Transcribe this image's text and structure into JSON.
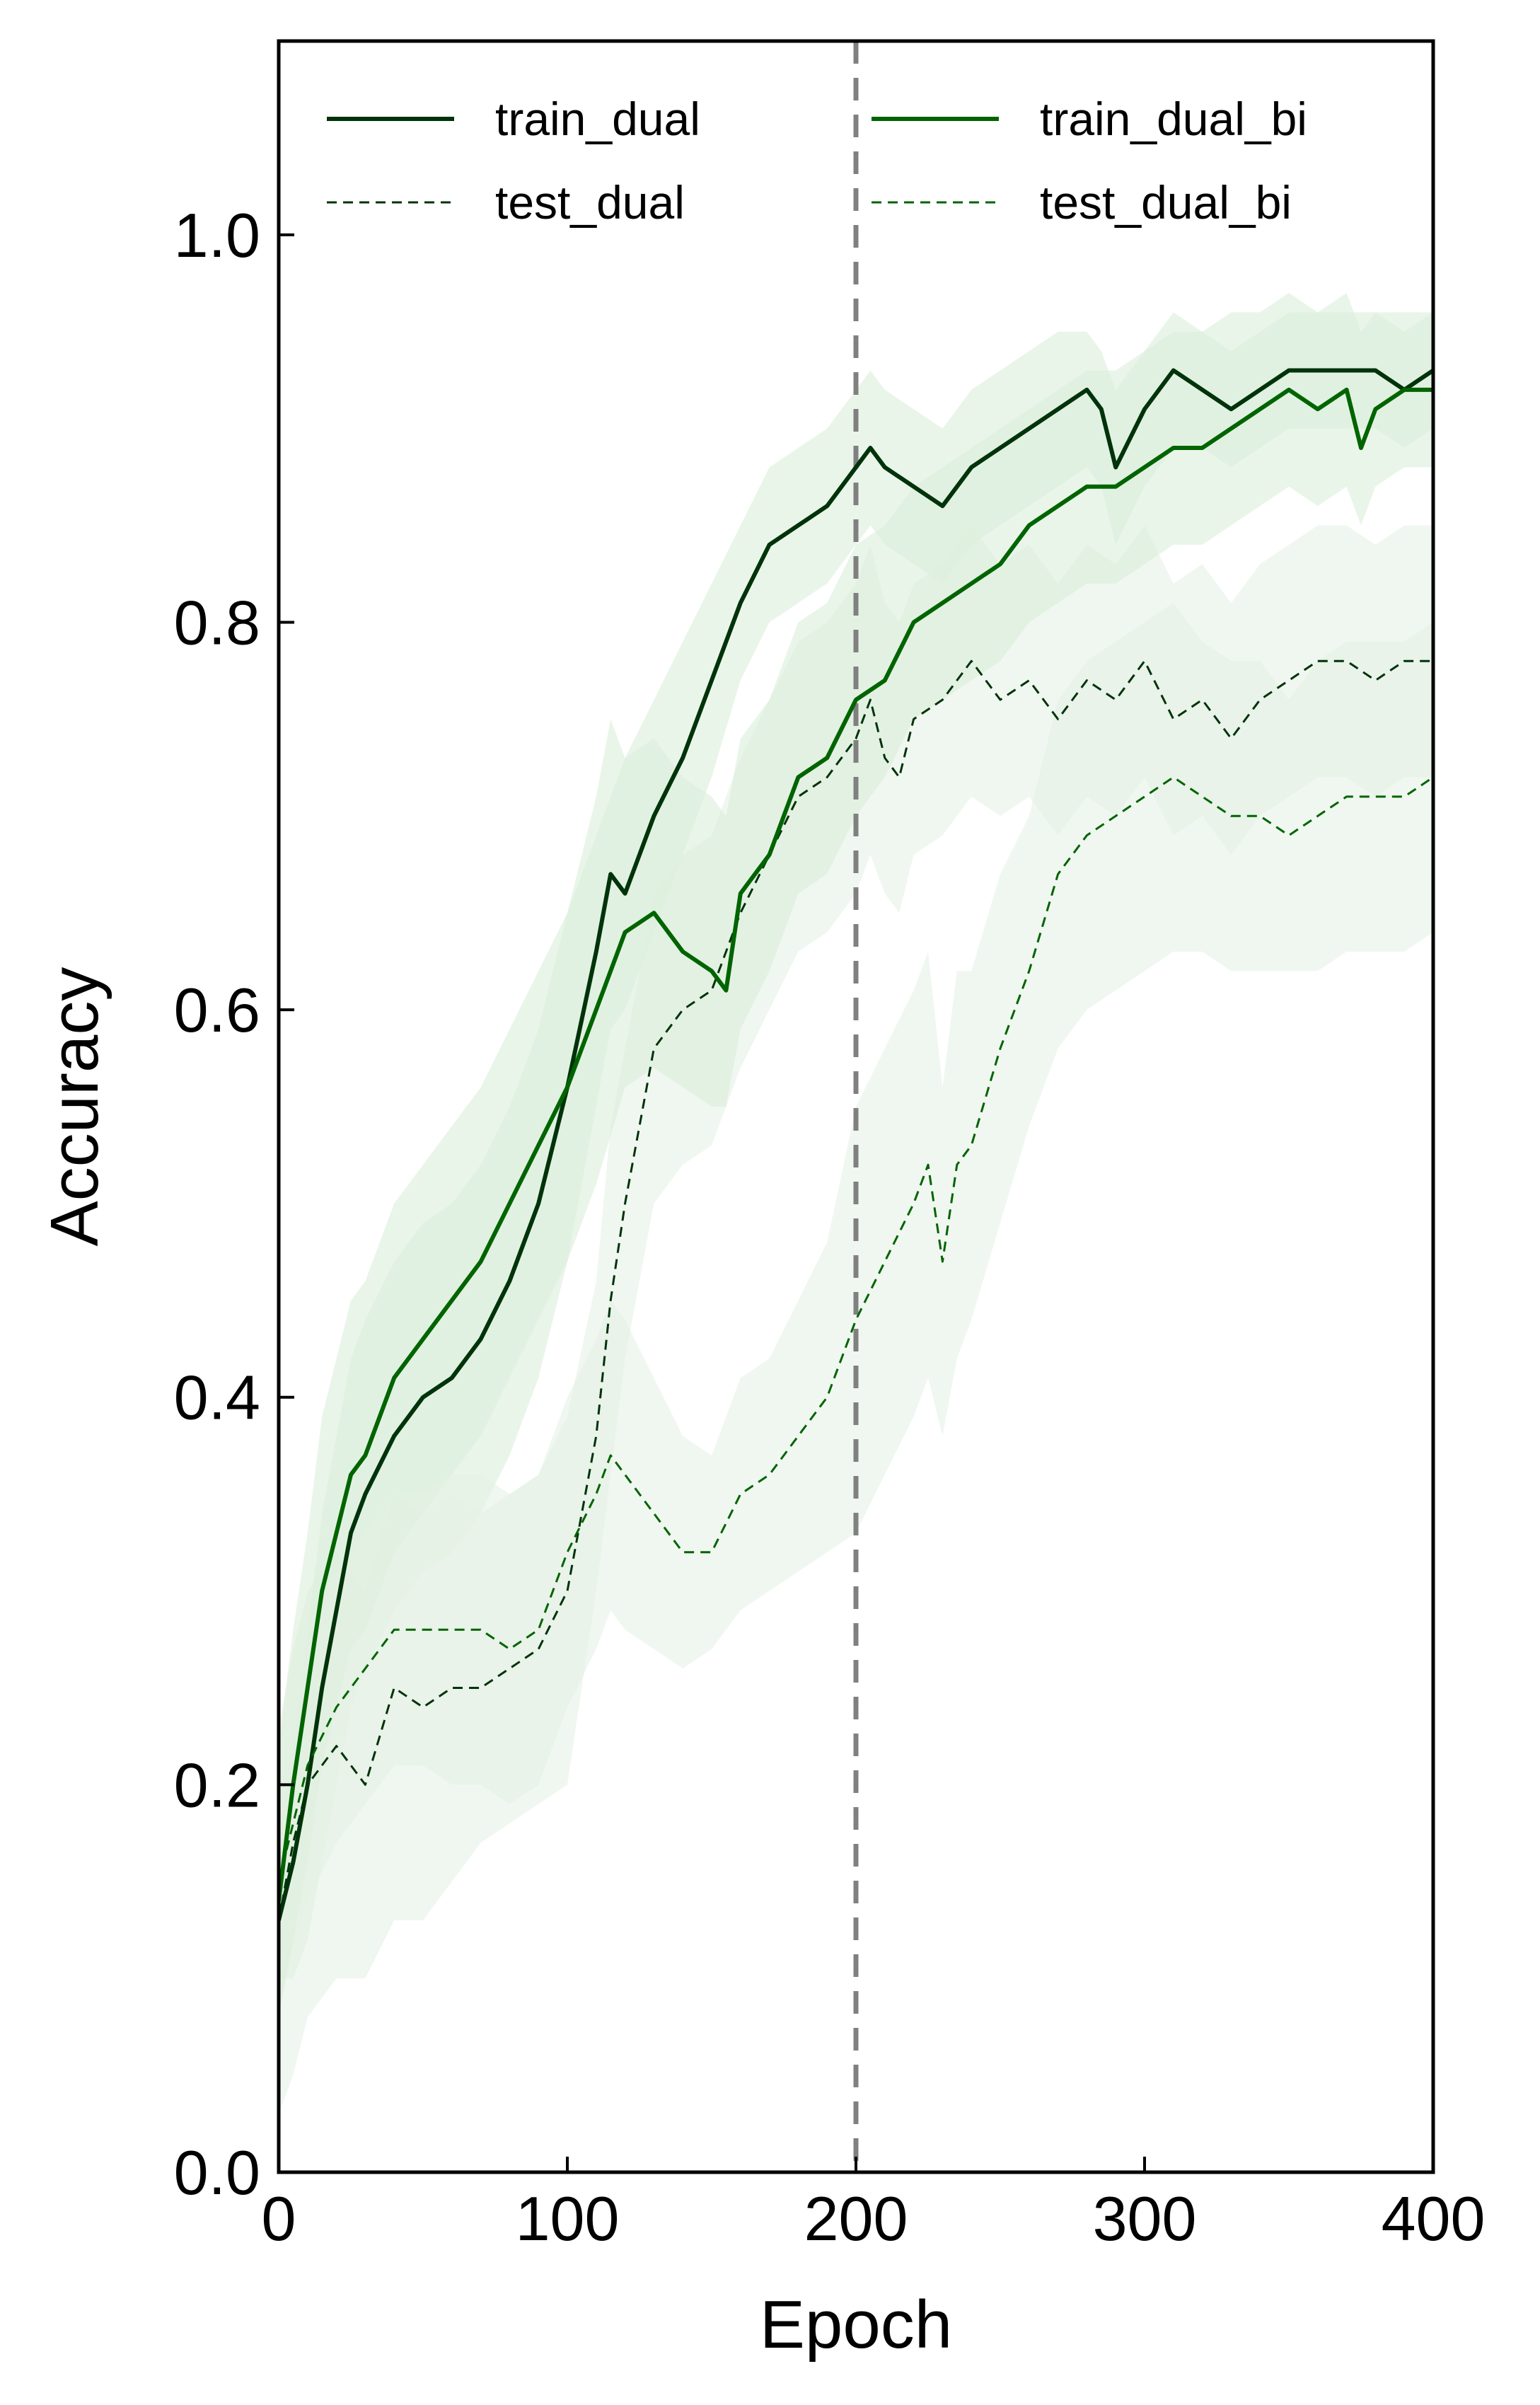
{
  "chart_data": {
    "type": "line",
    "title": "",
    "xlabel": "Epoch",
    "ylabel": "Accuracy",
    "xlim": [
      0,
      400
    ],
    "ylim": [
      0,
      1.1
    ],
    "xticks": [
      0,
      100,
      200,
      300,
      400
    ],
    "xtick_labels": [
      "0",
      "100",
      "200",
      "300",
      "400"
    ],
    "yticks": [
      0.0,
      0.2,
      0.4,
      0.6,
      0.8,
      1.0
    ],
    "ytick_labels": [
      "0.0",
      "0.2",
      "0.4",
      "0.6",
      "0.8",
      "1.0"
    ],
    "grid": false,
    "legend_position": "top",
    "vline": {
      "x": 200,
      "color": "#808080",
      "style": "dashed"
    },
    "series": [
      {
        "name": "train_dual",
        "color": "#00330a",
        "style": "solid",
        "band_color": "#d8ecd8",
        "x": [
          0,
          5,
          10,
          15,
          20,
          25,
          30,
          40,
          50,
          60,
          70,
          80,
          90,
          100,
          110,
          115,
          120,
          130,
          140,
          150,
          160,
          170,
          180,
          190,
          200,
          205,
          210,
          220,
          230,
          240,
          250,
          260,
          270,
          280,
          285,
          290,
          300,
          310,
          320,
          330,
          340,
          350,
          360,
          370,
          380,
          390,
          400
        ],
        "y": [
          0.13,
          0.16,
          0.2,
          0.25,
          0.29,
          0.33,
          0.35,
          0.38,
          0.4,
          0.41,
          0.43,
          0.46,
          0.5,
          0.56,
          0.63,
          0.67,
          0.66,
          0.7,
          0.73,
          0.77,
          0.81,
          0.84,
          0.85,
          0.86,
          0.88,
          0.89,
          0.88,
          0.87,
          0.86,
          0.88,
          0.89,
          0.9,
          0.91,
          0.92,
          0.91,
          0.88,
          0.91,
          0.93,
          0.92,
          0.91,
          0.92,
          0.93,
          0.93,
          0.93,
          0.93,
          0.92,
          0.93
        ],
        "band_low": [
          0.1,
          0.1,
          0.12,
          0.16,
          0.2,
          0.24,
          0.26,
          0.29,
          0.31,
          0.32,
          0.34,
          0.37,
          0.41,
          0.47,
          0.55,
          0.59,
          0.6,
          0.64,
          0.68,
          0.72,
          0.77,
          0.8,
          0.81,
          0.82,
          0.84,
          0.85,
          0.84,
          0.83,
          0.82,
          0.84,
          0.85,
          0.86,
          0.87,
          0.88,
          0.87,
          0.84,
          0.87,
          0.89,
          0.89,
          0.88,
          0.89,
          0.9,
          0.9,
          0.9,
          0.9,
          0.89,
          0.9
        ],
        "band_high": [
          0.17,
          0.22,
          0.28,
          0.34,
          0.38,
          0.42,
          0.44,
          0.47,
          0.49,
          0.5,
          0.52,
          0.55,
          0.59,
          0.65,
          0.71,
          0.75,
          0.73,
          0.76,
          0.79,
          0.82,
          0.85,
          0.88,
          0.89,
          0.9,
          0.92,
          0.93,
          0.92,
          0.91,
          0.9,
          0.92,
          0.93,
          0.94,
          0.95,
          0.95,
          0.94,
          0.92,
          0.94,
          0.96,
          0.95,
          0.94,
          0.95,
          0.96,
          0.96,
          0.96,
          0.96,
          0.95,
          0.96
        ]
      },
      {
        "name": "test_dual",
        "color": "#00330a",
        "style": "dashed",
        "band_color": "#e4f1e4",
        "x": [
          0,
          5,
          10,
          20,
          30,
          40,
          50,
          60,
          70,
          80,
          90,
          100,
          110,
          115,
          120,
          130,
          140,
          150,
          160,
          170,
          180,
          190,
          200,
          205,
          210,
          215,
          220,
          230,
          240,
          250,
          260,
          270,
          280,
          290,
          300,
          310,
          320,
          330,
          340,
          350,
          360,
          370,
          380,
          390,
          400
        ],
        "y": [
          0.13,
          0.17,
          0.2,
          0.22,
          0.2,
          0.25,
          0.24,
          0.25,
          0.25,
          0.26,
          0.27,
          0.3,
          0.38,
          0.45,
          0.5,
          0.58,
          0.6,
          0.61,
          0.65,
          0.68,
          0.71,
          0.72,
          0.74,
          0.76,
          0.73,
          0.72,
          0.75,
          0.76,
          0.78,
          0.76,
          0.77,
          0.75,
          0.77,
          0.76,
          0.78,
          0.75,
          0.76,
          0.74,
          0.76,
          0.77,
          0.78,
          0.78,
          0.77,
          0.78,
          0.78
        ],
        "band_low": [
          0.03,
          0.05,
          0.08,
          0.1,
          0.1,
          0.13,
          0.13,
          0.15,
          0.17,
          0.18,
          0.19,
          0.2,
          0.3,
          0.36,
          0.42,
          0.5,
          0.52,
          0.53,
          0.57,
          0.6,
          0.63,
          0.64,
          0.66,
          0.68,
          0.66,
          0.65,
          0.68,
          0.69,
          0.71,
          0.7,
          0.71,
          0.69,
          0.71,
          0.7,
          0.72,
          0.69,
          0.7,
          0.68,
          0.7,
          0.71,
          0.72,
          0.72,
          0.71,
          0.72,
          0.72
        ],
        "band_high": [
          0.23,
          0.27,
          0.3,
          0.32,
          0.3,
          0.35,
          0.34,
          0.35,
          0.34,
          0.35,
          0.36,
          0.39,
          0.46,
          0.54,
          0.58,
          0.66,
          0.68,
          0.69,
          0.73,
          0.76,
          0.79,
          0.8,
          0.82,
          0.84,
          0.81,
          0.8,
          0.82,
          0.83,
          0.85,
          0.83,
          0.84,
          0.82,
          0.84,
          0.83,
          0.85,
          0.82,
          0.83,
          0.81,
          0.83,
          0.84,
          0.85,
          0.85,
          0.84,
          0.85,
          0.85
        ]
      },
      {
        "name": "train_dual_bi",
        "color": "#006400",
        "style": "solid",
        "band_color": "#d8ecd8",
        "x": [
          0,
          5,
          10,
          15,
          20,
          25,
          30,
          40,
          50,
          60,
          70,
          80,
          90,
          100,
          110,
          120,
          130,
          140,
          150,
          155,
          160,
          170,
          180,
          190,
          200,
          210,
          220,
          230,
          240,
          250,
          260,
          270,
          280,
          290,
          300,
          310,
          320,
          330,
          340,
          350,
          360,
          370,
          375,
          380,
          390,
          400
        ],
        "y": [
          0.14,
          0.2,
          0.25,
          0.3,
          0.33,
          0.36,
          0.37,
          0.41,
          0.43,
          0.45,
          0.47,
          0.5,
          0.53,
          0.56,
          0.6,
          0.64,
          0.65,
          0.63,
          0.62,
          0.61,
          0.66,
          0.68,
          0.72,
          0.73,
          0.76,
          0.77,
          0.8,
          0.81,
          0.82,
          0.83,
          0.85,
          0.86,
          0.87,
          0.87,
          0.88,
          0.89,
          0.89,
          0.9,
          0.91,
          0.92,
          0.91,
          0.92,
          0.89,
          0.91,
          0.92,
          0.92
        ],
        "band_low": [
          0.08,
          0.12,
          0.16,
          0.21,
          0.24,
          0.27,
          0.28,
          0.32,
          0.34,
          0.36,
          0.38,
          0.41,
          0.44,
          0.47,
          0.51,
          0.56,
          0.57,
          0.56,
          0.55,
          0.55,
          0.59,
          0.62,
          0.66,
          0.67,
          0.7,
          0.72,
          0.75,
          0.76,
          0.77,
          0.78,
          0.8,
          0.81,
          0.82,
          0.82,
          0.83,
          0.84,
          0.84,
          0.85,
          0.86,
          0.87,
          0.86,
          0.87,
          0.85,
          0.87,
          0.88,
          0.88
        ],
        "band_high": [
          0.22,
          0.28,
          0.33,
          0.39,
          0.42,
          0.45,
          0.46,
          0.5,
          0.52,
          0.54,
          0.56,
          0.59,
          0.62,
          0.65,
          0.69,
          0.73,
          0.74,
          0.72,
          0.71,
          0.7,
          0.74,
          0.76,
          0.8,
          0.81,
          0.84,
          0.85,
          0.87,
          0.88,
          0.89,
          0.9,
          0.91,
          0.92,
          0.93,
          0.93,
          0.94,
          0.95,
          0.95,
          0.96,
          0.96,
          0.97,
          0.96,
          0.97,
          0.95,
          0.96,
          0.96,
          0.96
        ]
      },
      {
        "name": "test_dual_bi",
        "color": "#006400",
        "style": "dashed",
        "band_color": "#e4f1e4",
        "x": [
          0,
          10,
          20,
          30,
          40,
          50,
          60,
          70,
          80,
          90,
          100,
          110,
          115,
          120,
          130,
          140,
          150,
          160,
          170,
          180,
          190,
          200,
          210,
          220,
          225,
          230,
          235,
          240,
          250,
          260,
          270,
          280,
          290,
          300,
          310,
          320,
          330,
          340,
          350,
          360,
          370,
          380,
          390,
          400
        ],
        "y": [
          0.15,
          0.21,
          0.24,
          0.26,
          0.28,
          0.28,
          0.28,
          0.28,
          0.27,
          0.28,
          0.32,
          0.35,
          0.37,
          0.36,
          0.34,
          0.32,
          0.32,
          0.35,
          0.36,
          0.38,
          0.4,
          0.44,
          0.47,
          0.5,
          0.52,
          0.47,
          0.52,
          0.53,
          0.58,
          0.62,
          0.67,
          0.69,
          0.7,
          0.71,
          0.72,
          0.71,
          0.7,
          0.7,
          0.69,
          0.7,
          0.71,
          0.71,
          0.71,
          0.72
        ],
        "band_low": [
          0.1,
          0.14,
          0.17,
          0.19,
          0.21,
          0.21,
          0.2,
          0.2,
          0.19,
          0.2,
          0.24,
          0.27,
          0.29,
          0.28,
          0.27,
          0.26,
          0.27,
          0.29,
          0.3,
          0.31,
          0.32,
          0.33,
          0.36,
          0.39,
          0.41,
          0.38,
          0.42,
          0.44,
          0.49,
          0.54,
          0.58,
          0.6,
          0.61,
          0.62,
          0.63,
          0.63,
          0.62,
          0.62,
          0.62,
          0.62,
          0.63,
          0.63,
          0.63,
          0.64
        ],
        "band_high": [
          0.2,
          0.28,
          0.31,
          0.33,
          0.35,
          0.35,
          0.36,
          0.36,
          0.35,
          0.36,
          0.4,
          0.43,
          0.45,
          0.44,
          0.41,
          0.38,
          0.37,
          0.41,
          0.42,
          0.45,
          0.48,
          0.55,
          0.58,
          0.61,
          0.63,
          0.56,
          0.62,
          0.62,
          0.67,
          0.7,
          0.76,
          0.78,
          0.79,
          0.8,
          0.81,
          0.79,
          0.78,
          0.78,
          0.76,
          0.78,
          0.79,
          0.79,
          0.79,
          0.8
        ]
      }
    ]
  }
}
